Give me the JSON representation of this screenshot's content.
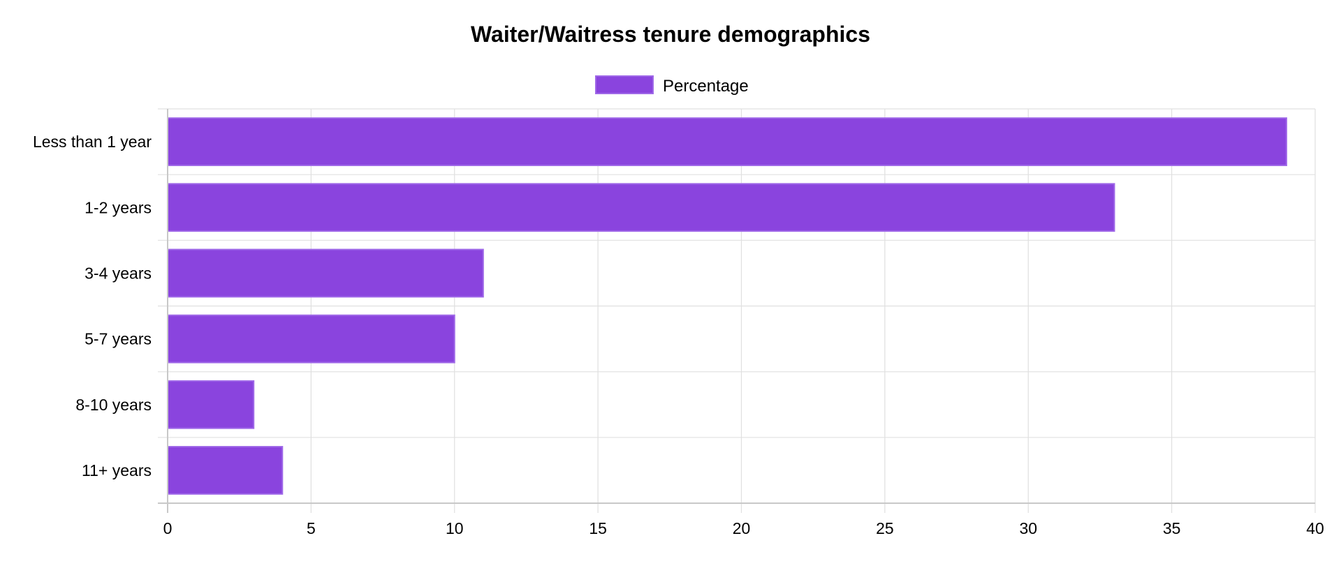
{
  "chart_data": {
    "type": "bar",
    "orientation": "horizontal",
    "title": "Waiter/Waitress tenure demographics",
    "categories": [
      "Less than 1 year",
      "1-2 years",
      "3-4 years",
      "5-7 years",
      "8-10 years",
      "11+ years"
    ],
    "series": [
      {
        "name": "Percentage",
        "values": [
          39,
          33,
          11,
          10,
          3,
          4
        ],
        "color": "#8a44de",
        "border_color": "#9f68e8"
      }
    ],
    "xlim": [
      0,
      40
    ],
    "x_ticks": [
      "0",
      "5",
      "10",
      "15",
      "20",
      "25",
      "30",
      "35",
      "40"
    ],
    "xlabel": "",
    "ylabel": "",
    "grid": true,
    "legend_position": "top-center"
  }
}
